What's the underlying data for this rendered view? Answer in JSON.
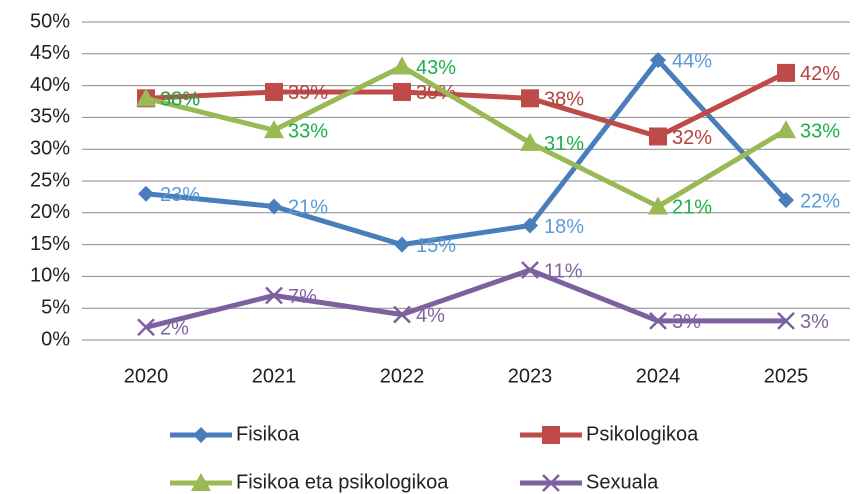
{
  "chart_data": {
    "type": "line",
    "categories": [
      "2020",
      "2021",
      "2022",
      "2023",
      "2024",
      "2025"
    ],
    "series": [
      {
        "name": "Fisikoa",
        "color": "#4a7ebb",
        "label_color": "#5b9bd5",
        "marker": "diamond",
        "values": [
          23,
          21,
          15,
          18,
          44,
          22
        ],
        "value_labels": [
          "23%",
          "21%",
          "15%",
          "18%",
          "44%",
          "22%"
        ]
      },
      {
        "name": "Psikologikoa",
        "color": "#be4b48",
        "label_color": "#b5403d",
        "marker": "square",
        "values": [
          38,
          39,
          39,
          38,
          32,
          42
        ],
        "value_labels": [
          "38%",
          "39%",
          "39%",
          "38%",
          "32%",
          "42%"
        ]
      },
      {
        "name": "Fisikoa eta psikologikoa",
        "color": "#98b954",
        "label_color": "#1fae4b",
        "marker": "triangle",
        "values": [
          38,
          33,
          43,
          31,
          21,
          33
        ],
        "value_labels": [
          "38%",
          "33%",
          "43%",
          "31%",
          "21%",
          "33%"
        ]
      },
      {
        "name": "Sexuala",
        "color": "#7d60a0",
        "label_color": "#8064a2",
        "marker": "x",
        "values": [
          2,
          7,
          4,
          11,
          3,
          3
        ],
        "value_labels": [
          "2%",
          "7%",
          "4%",
          "11%",
          "3%",
          "3%"
        ]
      }
    ],
    "ylim": [
      0,
      50
    ],
    "yticks": [
      {
        "value": 0,
        "label": "0%"
      },
      {
        "value": 5,
        "label": "5%"
      },
      {
        "value": 10,
        "label": "10%"
      },
      {
        "value": 15,
        "label": "15%"
      },
      {
        "value": 20,
        "label": "20%"
      },
      {
        "value": 25,
        "label": "25%"
      },
      {
        "value": 30,
        "label": "30%"
      },
      {
        "value": 35,
        "label": "35%"
      },
      {
        "value": 40,
        "label": "40%"
      },
      {
        "value": 45,
        "label": "45%"
      },
      {
        "value": 50,
        "label": "50%"
      }
    ],
    "grid": true,
    "legend": "bottom"
  }
}
